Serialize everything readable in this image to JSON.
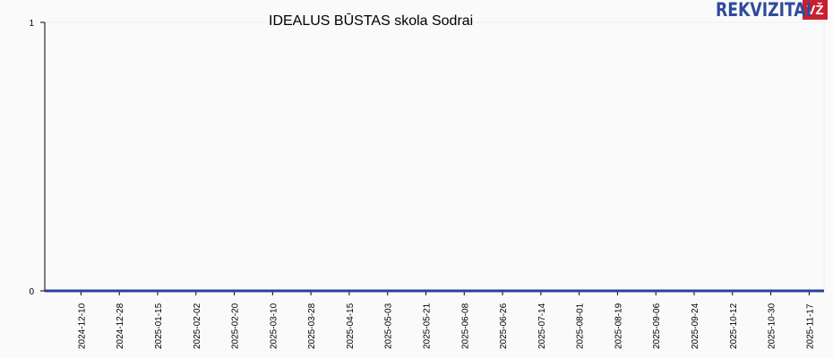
{
  "chart_data": {
    "type": "line",
    "title": "IDEALUS BŪSTAS skola Sodrai",
    "xlabel": "",
    "ylabel": "",
    "ylim": [
      0,
      1
    ],
    "yticks": [
      "0",
      "1"
    ],
    "xticks": [
      "2024-12-10",
      "2024-12-28",
      "2025-01-15",
      "2025-02-02",
      "2025-02-20",
      "2025-03-10",
      "2025-03-28",
      "2025-04-15",
      "2025-05-03",
      "2025-05-21",
      "2025-06-08",
      "2025-06-26",
      "2025-07-14",
      "2025-08-01",
      "2025-08-19",
      "2025-09-06",
      "2025-09-24",
      "2025-10-12",
      "2025-10-30",
      "2025-11-17"
    ],
    "xlim": [
      "2024-11-23",
      "2025-11-24"
    ],
    "grid": false,
    "series": [
      {
        "x": [
          "2024-11-23",
          "2025-11-24"
        ],
        "values": [
          0,
          0
        ],
        "color": "#2f3f9e"
      }
    ]
  },
  "logo": {
    "text": "REKVIZITAI",
    "badge": "VŽ",
    "color": "#2f4a9e",
    "badge_color": "#c8202f"
  }
}
